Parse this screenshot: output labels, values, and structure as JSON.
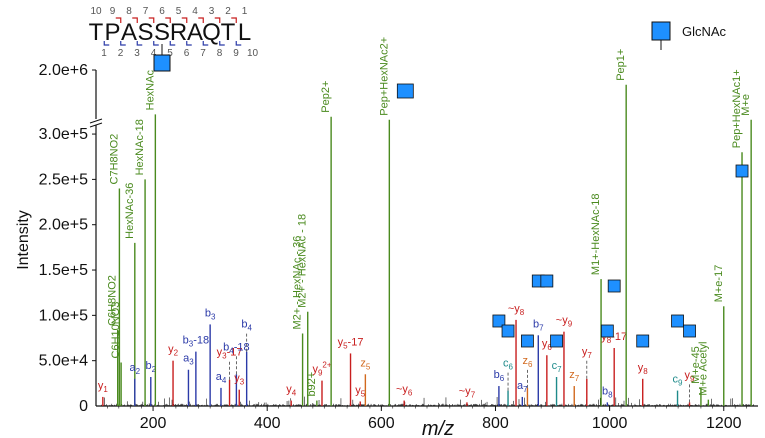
{
  "colors": {
    "b_ion": "#2b3aa8",
    "y_ion": "#c81e1e",
    "c_ion": "#1e8a8a",
    "z_ion": "#d2691e",
    "green": "#4a8a1e",
    "glcnac": "#1e90ff",
    "noise": "#111111"
  },
  "sequence": {
    "residues": [
      "T",
      "P",
      "A",
      "S",
      "S",
      "R",
      "A",
      "Q",
      "T",
      "L"
    ],
    "top_numbers": [
      "10",
      "9",
      "8",
      "7",
      "6",
      "5",
      "4",
      "3",
      "2",
      "1"
    ],
    "bottom_numbers": [
      "1",
      "2",
      "3",
      "4",
      "5",
      "6",
      "7",
      "8",
      "9",
      "10"
    ],
    "glycosite_index": 4
  },
  "legend": {
    "label": "GlcNAc"
  },
  "chart_data": {
    "type": "mass-spectrum",
    "xlabel": "m/z",
    "ylabel": "Intensity",
    "xlim": [
      100,
      1260
    ],
    "x_ticks": [
      200,
      400,
      600,
      800,
      1000,
      1200
    ],
    "y_ticks": [
      "5.0e+4",
      "1.0e+5",
      "1.5e+5",
      "2.0e+5",
      "2.5e+5",
      "3.0e+5",
      "2.0e+6"
    ],
    "ylim_lower": [
      0,
      310000
    ],
    "ylim_upper_max": 2000000,
    "peaks": [
      {
        "mz": 112,
        "i": 10000,
        "label": "y1",
        "main": "y",
        "sub": "1",
        "ion": "y_ion"
      },
      {
        "mz": 141,
        "i": 240000,
        "label": "C7H8NO2",
        "ion": "green"
      },
      {
        "mz": 144,
        "i": 48000,
        "label": "C6H10NO3",
        "ion": "green"
      },
      {
        "mz": 138,
        "i": 84000,
        "label": "C6H8NO2",
        "ion": "green"
      },
      {
        "mz": 168,
        "i": 180000,
        "label": "HexNAc-36",
        "ion": "green"
      },
      {
        "mz": 168,
        "i": 30000,
        "label": "a2",
        "main": "a",
        "sub": "2",
        "ion": "b_ion"
      },
      {
        "mz": 186,
        "i": 250000,
        "label": "HexNAc-18",
        "ion": "green"
      },
      {
        "mz": 196,
        "i": 32000,
        "label": "b2",
        "main": "b",
        "sub": "2",
        "ion": "b_ion"
      },
      {
        "mz": 204,
        "i": 500000,
        "label": "HexNAc",
        "ion": "green"
      },
      {
        "mz": 235,
        "i": 50000,
        "label": "y2",
        "main": "y",
        "sub": "2",
        "ion": "y_ion"
      },
      {
        "mz": 262,
        "i": 40000,
        "label": "a3",
        "main": "a",
        "sub": "3",
        "ion": "b_ion"
      },
      {
        "mz": 275,
        "i": 60000,
        "label": "b3-18",
        "main": "b",
        "sub": "3",
        "suffix": "-18",
        "ion": "b_ion"
      },
      {
        "mz": 300,
        "i": 90000,
        "label": "b3",
        "main": "b",
        "sub": "3",
        "ion": "b_ion"
      },
      {
        "mz": 319,
        "i": 20000,
        "label": "a4",
        "main": "a",
        "sub": "4",
        "ion": "b_ion"
      },
      {
        "mz": 334,
        "i": 29000,
        "label": "y3-17",
        "main": "y",
        "sub": "3",
        "suffix": "-17",
        "ion": "y_ion"
      },
      {
        "mz": 346,
        "i": 35000,
        "label": "b4-18",
        "main": "b",
        "sub": "4",
        "suffix": "-18",
        "ion": "b_ion"
      },
      {
        "mz": 351,
        "i": 18000,
        "label": "y3",
        "main": "y",
        "sub": "3",
        "ion": "y_ion"
      },
      {
        "mz": 364,
        "i": 60000,
        "label": "b4",
        "main": "b",
        "sub": "4",
        "ion": "b_ion"
      },
      {
        "mz": 442,
        "i": 6000,
        "label": "y4",
        "main": "y",
        "sub": "4",
        "ion": "y_ion"
      },
      {
        "mz": 462,
        "i": 80000,
        "label": "M2+ - HexNAc - 36",
        "ion": "green"
      },
      {
        "mz": 471,
        "i": 104000,
        "label": "M2+ - HexNAc - 18",
        "ion": "green"
      },
      {
        "mz": 487,
        "i": 6000,
        "label": "b92+",
        "main": "b",
        "sub": "9",
        "sup": "2+",
        "ion": "green"
      },
      {
        "mz": 496,
        "i": 28000,
        "label": "y92+",
        "main": "y",
        "sub": "9",
        "sup": "2+",
        "ion": "y_ion"
      },
      {
        "mz": 512,
        "i": 420000,
        "label": "Pep2+",
        "ion": "green"
      },
      {
        "mz": 546,
        "i": 58000,
        "label": "y5-17",
        "main": "y",
        "sub": "5",
        "suffix": "-17",
        "ion": "y_ion"
      },
      {
        "mz": 563,
        "i": 5000,
        "label": "y5",
        "main": "y",
        "sub": "5",
        "ion": "y_ion"
      },
      {
        "mz": 572,
        "i": 35000,
        "label": "z5",
        "main": "z",
        "sub": "5",
        "ion": "z_ion"
      },
      {
        "mz": 614,
        "i": 320000,
        "label": "Pep+HexNAc2+",
        "ion": "green"
      },
      {
        "mz": 640,
        "i": 6000,
        "label": "~y6",
        "main": "~y",
        "sub": "6",
        "ion": "y_ion"
      },
      {
        "mz": 750,
        "i": 4000,
        "label": "~y7",
        "main": "~y",
        "sub": "7",
        "ion": "y_ion"
      },
      {
        "mz": 806,
        "i": 22000,
        "label": "b6",
        "main": "b",
        "sub": "6",
        "ion": "b_ion"
      },
      {
        "mz": 822,
        "i": 17000,
        "label": "c6",
        "main": "c",
        "sub": "6",
        "ion": "c_ion"
      },
      {
        "mz": 836,
        "i": 95000,
        "label": "~y8",
        "main": "~y",
        "sub": "8",
        "ion": "y_ion"
      },
      {
        "mz": 847,
        "i": 10000,
        "label": "a7",
        "main": "a",
        "sub": "7",
        "ion": "b_ion"
      },
      {
        "mz": 856,
        "i": 20000,
        "label": "z6",
        "main": "z",
        "sub": "6",
        "ion": "z_ion"
      },
      {
        "mz": 875,
        "i": 78000,
        "label": "b7",
        "main": "b",
        "sub": "7",
        "ion": "b_ion"
      },
      {
        "mz": 890,
        "i": 56000,
        "label": "y6",
        "main": "y",
        "sub": "6",
        "ion": "y_ion"
      },
      {
        "mz": 907,
        "i": 32000,
        "label": "c7",
        "main": "c",
        "sub": "7",
        "ion": "c_ion"
      },
      {
        "mz": 920,
        "i": 82000,
        "label": "~y9",
        "main": "~y",
        "sub": "9",
        "ion": "y_ion"
      },
      {
        "mz": 938,
        "i": 22000,
        "label": "z7",
        "main": "z",
        "sub": "7",
        "ion": "z_ion"
      },
      {
        "mz": 960,
        "i": 30000,
        "label": "y7",
        "main": "y",
        "sub": "7",
        "ion": "y_ion"
      },
      {
        "mz": 985,
        "i": 140000,
        "label": "M1+-HexNAc-18",
        "ion": "green"
      },
      {
        "mz": 996,
        "i": 4000,
        "label": "b8",
        "main": "b",
        "sub": "8",
        "ion": "b_ion"
      },
      {
        "mz": 1008,
        "i": 64000,
        "label": "y8-17",
        "main": "y",
        "sub": "8",
        "suffix": "-17",
        "ion": "y_ion"
      },
      {
        "mz": 1029,
        "i": 1500000,
        "label": "Pep1+",
        "ion": "green"
      },
      {
        "mz": 1058,
        "i": 30000,
        "label": "y8",
        "main": "y",
        "sub": "8",
        "ion": "y_ion"
      },
      {
        "mz": 1119,
        "i": 17000,
        "label": "c9",
        "main": "c",
        "sub": "9",
        "ion": "c_ion"
      },
      {
        "mz": 1140,
        "i": 4000,
        "label": "y9",
        "main": "y",
        "sub": "9",
        "ion": "y_ion"
      },
      {
        "mz": 1160,
        "i": 20000,
        "label": "M+e-45",
        "ion": "green"
      },
      {
        "mz": 1173,
        "i": 7000,
        "label": "M+e Acetyl",
        "ion": "green"
      },
      {
        "mz": 1200,
        "i": 110000,
        "label": "M+e-17",
        "ion": "green"
      },
      {
        "mz": 1232,
        "i": 280000,
        "label": "Pep+HexNAc1+",
        "ion": "green"
      },
      {
        "mz": 1248,
        "i": 320000,
        "label": "M+e",
        "ion": "green"
      }
    ]
  }
}
